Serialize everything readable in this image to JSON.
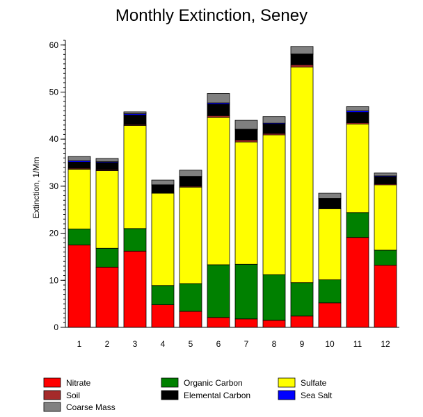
{
  "chart_data": {
    "type": "bar",
    "stacked": true,
    "title": "Monthly Extinction, Seney",
    "xlabel": "",
    "ylabel": "Extinction, 1/Mm",
    "ylim": [
      0,
      61
    ],
    "yticks": [
      0,
      10,
      20,
      30,
      40,
      50,
      60
    ],
    "grid": false,
    "legend_position": "bottom",
    "categories": [
      "1",
      "2",
      "3",
      "4",
      "5",
      "6",
      "7",
      "8",
      "9",
      "10",
      "11",
      "12"
    ],
    "series": [
      {
        "name": "Nitrate",
        "color": "#ff0000",
        "values": [
          17.5,
          12.8,
          16.2,
          4.8,
          3.4,
          2.1,
          1.8,
          1.5,
          2.4,
          5.2,
          19.1,
          13.2
        ]
      },
      {
        "name": "Organic Carbon",
        "color": "#008000",
        "values": [
          3.4,
          4.0,
          4.8,
          4.1,
          5.9,
          11.2,
          11.6,
          9.7,
          7.1,
          4.9,
          5.3,
          3.2
        ]
      },
      {
        "name": "Sulfate",
        "color": "#ffff00",
        "values": [
          12.7,
          16.5,
          21.9,
          19.6,
          20.5,
          31.3,
          26.0,
          29.7,
          45.8,
          15.1,
          18.8,
          13.9
        ]
      },
      {
        "name": "Soil",
        "color": "#a52a2a",
        "values": [
          0.2,
          0.2,
          0.2,
          0.1,
          0.2,
          0.4,
          0.4,
          0.3,
          0.5,
          0.1,
          0.3,
          0.2
        ]
      },
      {
        "name": "Elemental Carbon",
        "color": "#000000",
        "values": [
          1.3,
          1.5,
          2.0,
          1.6,
          2.0,
          2.4,
          2.2,
          2.0,
          2.2,
          2.0,
          2.2,
          1.5
        ]
      },
      {
        "name": "Sea Salt",
        "color": "#0000ff",
        "values": [
          0.3,
          0.2,
          0.3,
          0.1,
          0.1,
          0.3,
          0.1,
          0.2,
          0.1,
          0.1,
          0.3,
          0.2
        ]
      },
      {
        "name": "Coarse Mass",
        "color": "#808080",
        "values": [
          0.9,
          0.7,
          0.4,
          1.0,
          1.3,
          2.0,
          1.9,
          1.4,
          1.6,
          1.1,
          0.9,
          0.6
        ]
      }
    ],
    "legend": [
      {
        "name": "Nitrate",
        "color": "#ff0000"
      },
      {
        "name": "Organic Carbon",
        "color": "#008000"
      },
      {
        "name": "Sulfate",
        "color": "#ffff00"
      },
      {
        "name": "Soil",
        "color": "#a52a2a"
      },
      {
        "name": "Elemental Carbon",
        "color": "#000000"
      },
      {
        "name": "Sea Salt",
        "color": "#0000ff"
      },
      {
        "name": "Coarse Mass",
        "color": "#808080"
      }
    ]
  }
}
